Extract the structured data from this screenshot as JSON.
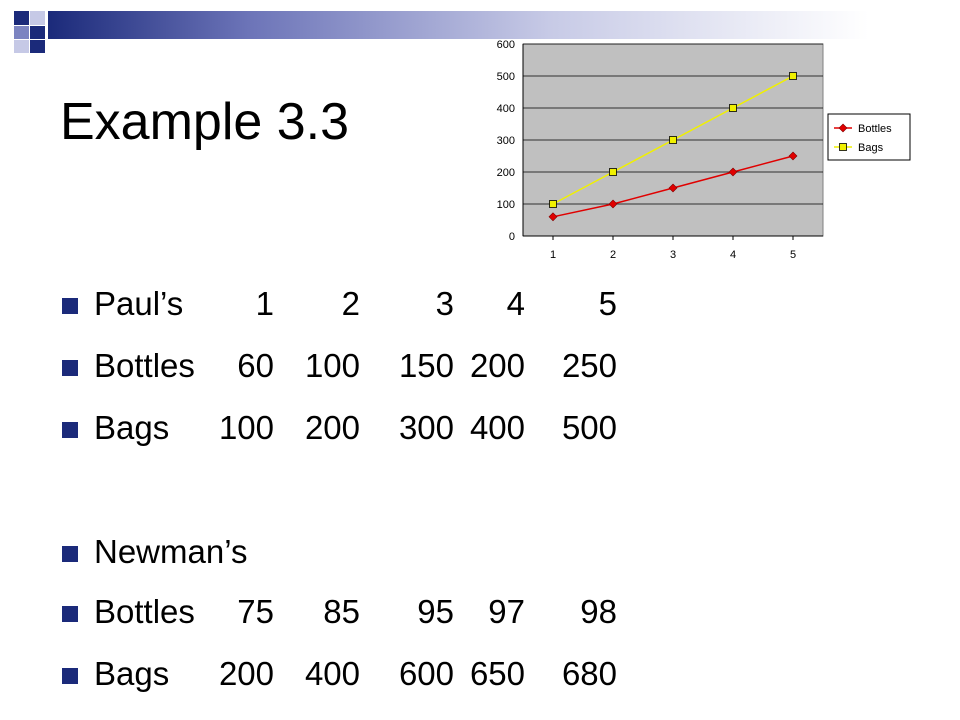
{
  "slide": {
    "title": "Example 3.3"
  },
  "colors": {
    "navy": "#1b2a7a",
    "plot_bg": "#c0c0c0",
    "bottles": "#e00000",
    "bags": "#f0f000"
  },
  "rows": [
    {
      "label": "Paul’s",
      "values": [
        "1",
        "2",
        "3",
        "4",
        "5"
      ]
    },
    {
      "label": "Bottles",
      "values": [
        "60",
        "100",
        "150",
        "200",
        "250"
      ]
    },
    {
      "label": "Bags",
      "values": [
        "100",
        "200",
        "300",
        "400",
        "500"
      ]
    },
    {
      "label": "Newman’s",
      "values": []
    },
    {
      "label": "Bottles",
      "values": [
        "75",
        "85",
        "95",
        "97",
        "98"
      ]
    },
    {
      "label": "Bags",
      "values": [
        "200",
        "400",
        "600",
        "650",
        "680"
      ]
    }
  ],
  "chart_data": {
    "type": "line",
    "categories": [
      "1",
      "2",
      "3",
      "4",
      "5"
    ],
    "ylim": [
      0,
      600
    ],
    "yticks": [
      "0",
      "100",
      "200",
      "300",
      "400",
      "500",
      "600"
    ],
    "grid": true,
    "legend": "right",
    "series": [
      {
        "name": "Bottles",
        "values": [
          60,
          100,
          150,
          200,
          250
        ],
        "color": "#e00000",
        "marker": "diamond"
      },
      {
        "name": "Bags",
        "values": [
          100,
          200,
          300,
          400,
          500
        ],
        "color": "#f0f000",
        "marker": "square"
      }
    ]
  }
}
